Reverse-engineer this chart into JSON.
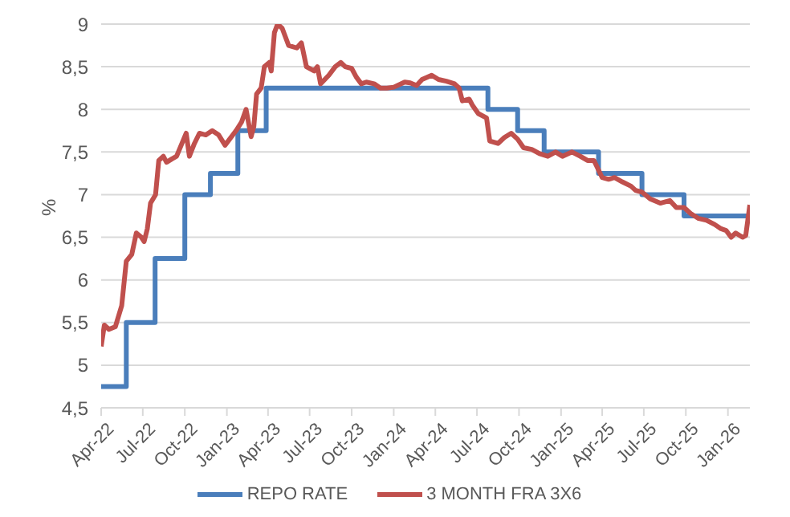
{
  "chart_data": {
    "type": "line",
    "ylabel": "%",
    "xlim": [
      "2022-04-01",
      "2026-02-18"
    ],
    "xticks": [
      {
        "value": "2022-04-01",
        "label": "Apr-22"
      },
      {
        "value": "2022-07-01",
        "label": "Jul-22"
      },
      {
        "value": "2022-10-01",
        "label": "Oct-22"
      },
      {
        "value": "2023-01-01",
        "label": "Jan-23"
      },
      {
        "value": "2023-04-01",
        "label": "Apr-23"
      },
      {
        "value": "2023-07-01",
        "label": "Jul-23"
      },
      {
        "value": "2023-10-01",
        "label": "Oct-23"
      },
      {
        "value": "2024-01-01",
        "label": "Jan-24"
      },
      {
        "value": "2024-04-01",
        "label": "Apr-24"
      },
      {
        "value": "2024-07-01",
        "label": "Jul-24"
      },
      {
        "value": "2024-10-01",
        "label": "Oct-24"
      },
      {
        "value": "2025-01-01",
        "label": "Jan-25"
      },
      {
        "value": "2025-04-01",
        "label": "Apr-25"
      },
      {
        "value": "2025-07-01",
        "label": "Jul-25"
      },
      {
        "value": "2025-10-01",
        "label": "Oct-25"
      },
      {
        "value": "2026-01-01",
        "label": "Jan-26"
      }
    ],
    "ylim": [
      4.5,
      9
    ],
    "yticks": [
      {
        "value": 4.5,
        "label": "4,5"
      },
      5,
      {
        "value": 5.5,
        "label": "5,5"
      },
      6,
      {
        "value": 6.5,
        "label": "6,5"
      },
      7,
      {
        "value": 7.5,
        "label": "7,5"
      },
      8,
      {
        "value": 8.5,
        "label": "8,5"
      },
      9
    ],
    "grid": "y",
    "legend": "bottom",
    "marker": "none",
    "series": [
      {
        "name": "REPO RATE",
        "type": "step",
        "color": "#4a7ebb",
        "x": [
          "2022-04-01",
          "2022-05-26",
          "2022-07-28",
          "2022-10-01",
          "2022-11-26",
          "2023-01-25",
          "2023-03-28",
          "2024-07-25",
          "2024-09-28",
          "2024-11-25",
          "2025-03-24",
          "2025-06-27",
          "2025-09-27",
          "2026-02-18"
        ],
        "values": [
          4.75,
          5.5,
          6.25,
          7,
          7.25,
          7.75,
          8.25,
          8.0,
          7.75,
          7.5,
          7.25,
          7.0,
          6.75,
          6.75
        ]
      },
      {
        "name": "3 MONTH FRA 3X6",
        "type": "line",
        "color": "#c0504d",
        "x": [
          "2022-04-01",
          "2022-04-08",
          "2022-04-18",
          "2022-05-02",
          "2022-05-16",
          "2022-05-26",
          "2022-06-07",
          "2022-06-17",
          "2022-06-28",
          "2022-07-04",
          "2022-07-11",
          "2022-07-18",
          "2022-07-29",
          "2022-08-05",
          "2022-08-15",
          "2022-08-22",
          "2022-09-03",
          "2022-09-13",
          "2022-10-04",
          "2022-10-11",
          "2022-10-22",
          "2022-11-02",
          "2022-11-16",
          "2022-11-30",
          "2022-12-14",
          "2022-12-28",
          "2023-01-07",
          "2023-01-21",
          "2023-02-02",
          "2023-02-12",
          "2023-02-23",
          "2023-03-01",
          "2023-03-07",
          "2023-03-17",
          "2023-03-24",
          "2023-04-04",
          "2023-04-08",
          "2023-04-15",
          "2023-04-22",
          "2023-05-02",
          "2023-05-16",
          "2023-06-03",
          "2023-06-13",
          "2023-06-24",
          "2023-07-11",
          "2023-07-18",
          "2023-07-25",
          "2023-08-12",
          "2023-08-26",
          "2023-09-07",
          "2023-09-17",
          "2023-10-01",
          "2023-10-11",
          "2023-10-22",
          "2023-11-02",
          "2023-11-19",
          "2023-12-03",
          "2023-12-17",
          "2024-01-01",
          "2024-01-25",
          "2024-02-06",
          "2024-02-20",
          "2024-03-03",
          "2024-03-24",
          "2024-04-08",
          "2024-04-25",
          "2024-05-13",
          "2024-05-23",
          "2024-05-30",
          "2024-06-14",
          "2024-06-21",
          "2024-07-04",
          "2024-07-22",
          "2024-07-29",
          "2024-08-16",
          "2024-08-30",
          "2024-09-14",
          "2024-09-28",
          "2024-10-11",
          "2024-10-29",
          "2024-11-15",
          "2024-12-03",
          "2024-12-20",
          "2025-01-04",
          "2025-01-25",
          "2025-02-12",
          "2025-02-28",
          "2025-03-14",
          "2025-04-01",
          "2025-04-15",
          "2025-04-28",
          "2025-05-15",
          "2025-06-03",
          "2025-06-13",
          "2025-06-27",
          "2025-07-15",
          "2025-08-06",
          "2025-08-27",
          "2025-09-10",
          "2025-09-27",
          "2025-10-11",
          "2025-10-29",
          "2025-11-15",
          "2025-12-03",
          "2025-12-17",
          "2025-12-28",
          "2026-01-08",
          "2026-01-18",
          "2026-02-02",
          "2026-02-09",
          "2026-02-18"
        ],
        "values": [
          5.22,
          5.47,
          5.42,
          5.45,
          5.7,
          6.22,
          6.3,
          6.55,
          6.5,
          6.45,
          6.6,
          6.9,
          7.0,
          7.4,
          7.45,
          7.38,
          7.42,
          7.45,
          7.72,
          7.45,
          7.6,
          7.72,
          7.7,
          7.75,
          7.7,
          7.58,
          7.65,
          7.75,
          7.85,
          8.0,
          7.68,
          7.8,
          8.18,
          8.25,
          8.5,
          8.55,
          8.45,
          8.9,
          9.0,
          8.95,
          8.75,
          8.72,
          8.78,
          8.5,
          8.45,
          8.5,
          8.3,
          8.4,
          8.5,
          8.55,
          8.5,
          8.48,
          8.38,
          8.3,
          8.32,
          8.3,
          8.25,
          8.25,
          8.26,
          8.32,
          8.31,
          8.28,
          8.35,
          8.4,
          8.35,
          8.33,
          8.3,
          8.25,
          8.1,
          8.12,
          8.05,
          7.95,
          7.9,
          7.63,
          7.6,
          7.67,
          7.72,
          7.65,
          7.55,
          7.53,
          7.48,
          7.45,
          7.5,
          7.45,
          7.5,
          7.45,
          7.4,
          7.4,
          7.2,
          7.18,
          7.2,
          7.15,
          7.1,
          7.05,
          7.03,
          6.95,
          6.9,
          6.93,
          6.85,
          6.85,
          6.78,
          6.72,
          6.7,
          6.65,
          6.6,
          6.58,
          6.5,
          6.55,
          6.5,
          6.52,
          6.88
        ]
      }
    ]
  }
}
